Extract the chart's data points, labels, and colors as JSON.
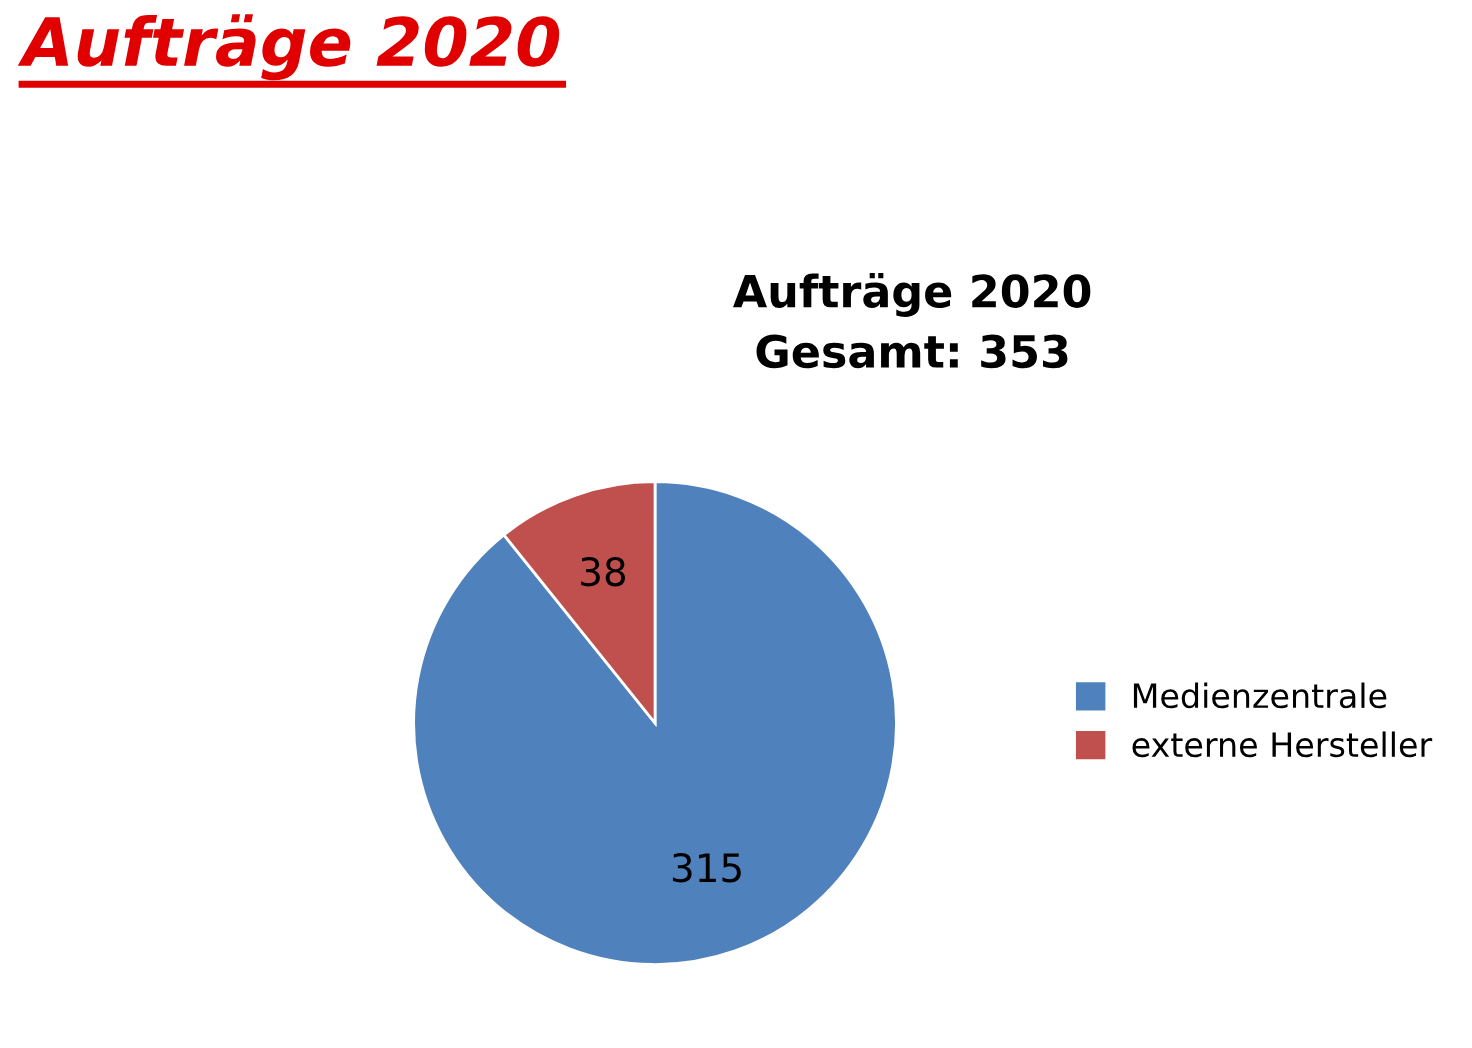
{
  "chart_data": {
    "type": "pie",
    "title": "Aufträge 2020",
    "subtitle": "Aufträge 2020\nGesamt: 353",
    "categories": [
      "Medienzentrale",
      "externe Hersteller"
    ],
    "values": [
      315,
      38
    ],
    "colors": [
      "#4f81bd",
      "#c0504d"
    ],
    "data_labels": true,
    "legend": "right"
  }
}
